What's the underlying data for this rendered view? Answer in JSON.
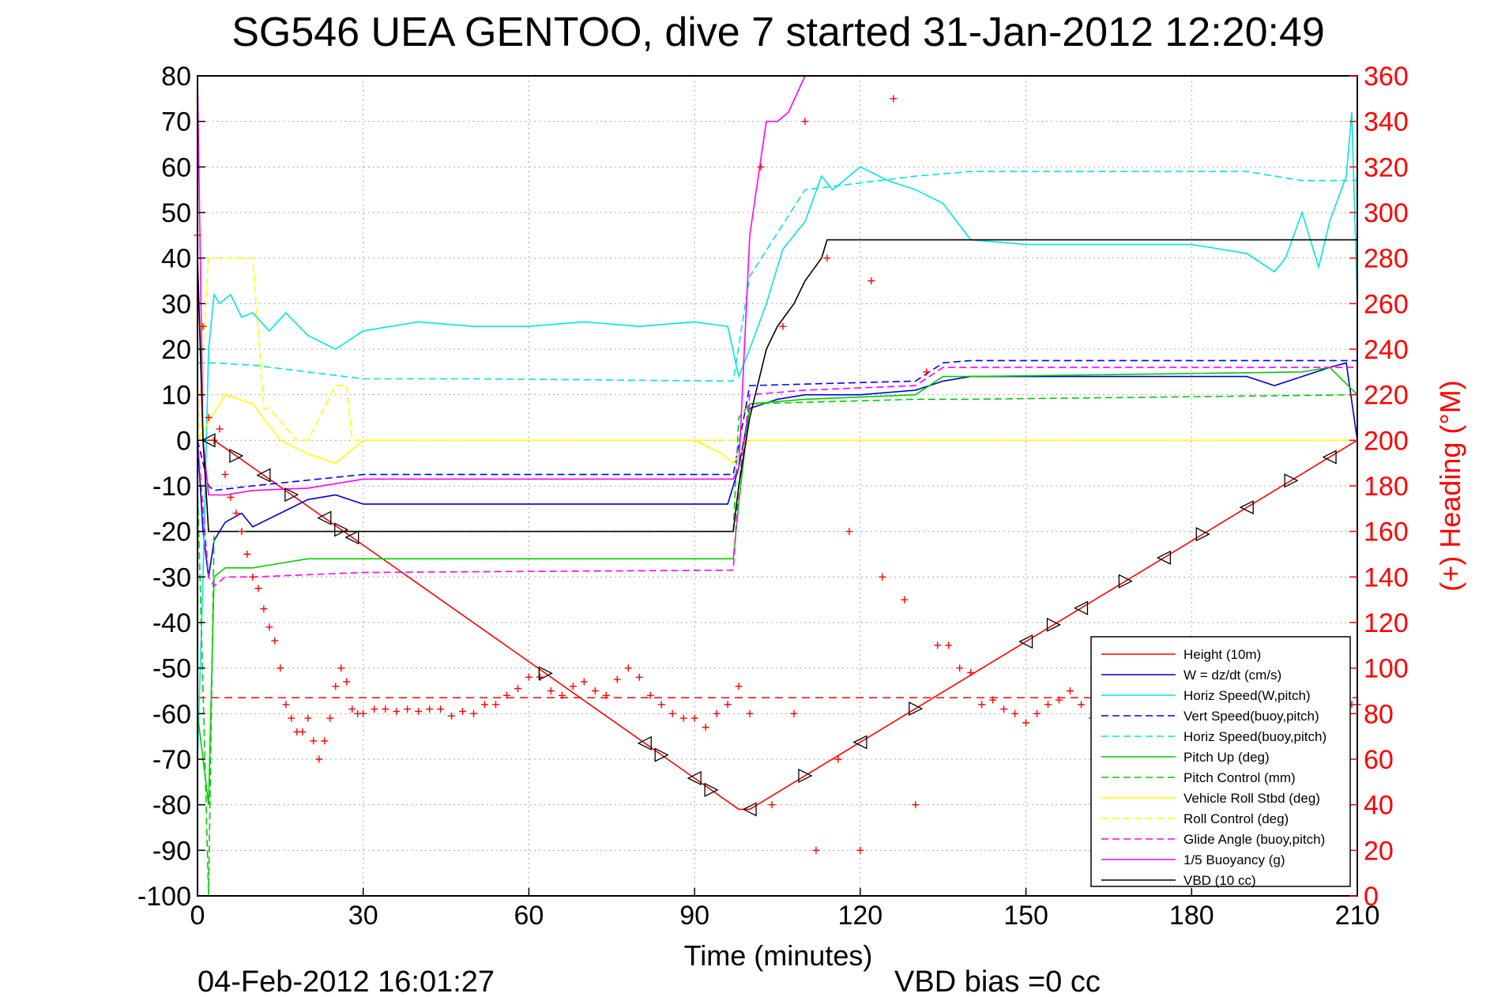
{
  "chart_data": {
    "type": "line",
    "title": "SG546 UEA GENTOO, dive 7 started 31-Jan-2012 12:20:49",
    "xlabel": "Time (minutes)",
    "ylabel_right": "(+) Heading (°M)",
    "xlim": [
      0,
      210
    ],
    "ylim": [
      -100,
      80
    ],
    "ylim_right": [
      0,
      360
    ],
    "xticks": [
      0,
      30,
      60,
      90,
      120,
      150,
      180,
      210
    ],
    "yticks": [
      80,
      70,
      60,
      50,
      40,
      30,
      20,
      10,
      0,
      -10,
      -20,
      -30,
      -40,
      -50,
      -60,
      -70,
      -80,
      -90,
      -100
    ],
    "yticks_right": [
      360,
      340,
      320,
      300,
      280,
      260,
      240,
      220,
      200,
      180,
      160,
      140,
      120,
      100,
      80,
      60,
      40,
      20,
      0
    ],
    "grid": true,
    "legend_position": "bottom-right",
    "footer_left": "04-Feb-2012 16:01:27",
    "footer_right": "VBD bias =0 cc",
    "reference_line_y": -56.5,
    "series": [
      {
        "name": "Height (10m)",
        "color": "#ff0000",
        "style": "solid",
        "x": [
          0,
          2,
          3,
          98,
          100,
          210
        ],
        "y": [
          0,
          0,
          0,
          -81,
          -81,
          0
        ]
      },
      {
        "name": "W = dz/dt (cm/s)",
        "color": "#0000cc",
        "style": "solid",
        "x": [
          0,
          1,
          2,
          3,
          5,
          8,
          10,
          15,
          20,
          25,
          30,
          50,
          70,
          90,
          96,
          98,
          100,
          105,
          110,
          120,
          130,
          135,
          140,
          150,
          160,
          170,
          180,
          190,
          195,
          200,
          205,
          208,
          210
        ],
        "y": [
          0,
          -20,
          -30,
          -22,
          -18,
          -16,
          -19,
          -16,
          -13,
          -12,
          -14,
          -14,
          -14,
          -14,
          -14,
          -6,
          7,
          9,
          10,
          10,
          11,
          13,
          14,
          14,
          14,
          14,
          14,
          14,
          12,
          14,
          16,
          17,
          0
        ]
      },
      {
        "name": "Horiz Speed(W,pitch)",
        "color": "#00e5e5",
        "style": "solid",
        "x": [
          0,
          1,
          2,
          3,
          4,
          6,
          8,
          10,
          13,
          16,
          20,
          25,
          30,
          40,
          50,
          60,
          70,
          80,
          90,
          96,
          98,
          100,
          103,
          106,
          110,
          113,
          115,
          120,
          125,
          130,
          135,
          140,
          150,
          160,
          170,
          180,
          190,
          195,
          197,
          200,
          203,
          205,
          208,
          209,
          210
        ],
        "y": [
          -70,
          -30,
          20,
          32,
          30,
          32,
          27,
          28,
          24,
          28,
          23,
          20,
          24,
          26,
          25,
          25,
          26,
          25,
          26,
          25,
          14,
          20,
          30,
          42,
          48,
          58,
          55,
          60,
          57,
          55,
          52,
          44,
          43,
          43,
          43,
          43,
          41,
          37,
          40,
          50,
          38,
          48,
          58,
          72,
          30
        ]
      },
      {
        "name": "Vert Speed(buoy,pitch)",
        "color": "#0000ff",
        "style": "dashed",
        "x": [
          0,
          2,
          3,
          10,
          30,
          97,
          100,
          130,
          135,
          140,
          205,
          210
        ],
        "y": [
          0,
          -10,
          -11,
          -10,
          -7.5,
          -7.5,
          12,
          13,
          17,
          17.5,
          17.5,
          17.5
        ]
      },
      {
        "name": "Horiz Speed(buoy,pitch)",
        "color": "#00e5e5",
        "style": "dashed",
        "x": [
          0,
          3,
          10,
          20,
          30,
          50,
          97,
          100,
          110,
          130,
          135,
          140,
          180,
          190,
          200,
          205,
          210
        ],
        "y": [
          17,
          17,
          16.5,
          15,
          13.5,
          13.5,
          13,
          36,
          55,
          58,
          58.5,
          59,
          59,
          59,
          57,
          57,
          57
        ]
      },
      {
        "name": "Pitch Up (deg)",
        "color": "#00cc00",
        "style": "solid",
        "x": [
          0,
          2,
          3,
          5,
          10,
          15,
          20,
          30,
          97,
          98,
          100,
          110,
          130,
          135,
          140,
          200,
          205,
          210
        ],
        "y": [
          -60,
          -80,
          -30,
          -28,
          -28,
          -27,
          -26,
          -26,
          -26,
          -14,
          8,
          9,
          10,
          14,
          14,
          15,
          16,
          10
        ]
      },
      {
        "name": "Pitch Control (mm)",
        "color": "#00cc00",
        "style": "dashed",
        "x": [
          0,
          2,
          3,
          5,
          97,
          98,
          100,
          130,
          140,
          210
        ],
        "y": [
          -10,
          -100,
          -20,
          -20,
          -20,
          5,
          8,
          9,
          9,
          10
        ]
      },
      {
        "name": "Vehicle Roll Stbd (deg)",
        "color": "#ffff00",
        "style": "solid",
        "x": [
          0,
          5,
          10,
          15,
          20,
          25,
          30,
          50,
          80,
          90,
          95,
          97,
          100,
          120,
          135,
          140,
          180,
          210
        ],
        "y": [
          0,
          10,
          8,
          0,
          -3,
          -5,
          0,
          0,
          0,
          0,
          -3,
          -5,
          0,
          0,
          0,
          0,
          0,
          0
        ]
      },
      {
        "name": "Roll Control (deg)",
        "color": "#ffff00",
        "style": "dashed",
        "x": [
          0,
          2,
          3,
          5,
          10,
          12,
          13,
          18,
          20,
          25,
          27,
          28,
          30,
          95,
          97,
          100,
          135,
          140,
          210
        ],
        "y": [
          0,
          40,
          40,
          40,
          40,
          7,
          7,
          0,
          0,
          12,
          12,
          0,
          0,
          0,
          0,
          0,
          0,
          0,
          0
        ]
      },
      {
        "name": "Glide Angle (buoy,pitch)",
        "color": "#ff00ff",
        "style": "dashed",
        "x": [
          0,
          2,
          3,
          5,
          10,
          20,
          30,
          97,
          98,
          100,
          110,
          130,
          135,
          140,
          200,
          210
        ],
        "y": [
          0,
          -30,
          -32,
          -30,
          -30,
          -29.5,
          -29,
          -28.5,
          -10,
          10,
          11,
          12,
          16,
          16,
          16,
          16
        ]
      },
      {
        "name": "1/5 Buoyancy (g)",
        "color": "#ff00ff",
        "style": "solid",
        "x": [
          0,
          1,
          2,
          3,
          5,
          10,
          20,
          30,
          97,
          98,
          100,
          103,
          105,
          107,
          110
        ],
        "y": [
          80,
          0,
          -12,
          -12,
          -12,
          -11,
          -10.5,
          -8.5,
          -8.5,
          -6,
          45,
          70,
          70,
          72,
          80
        ]
      },
      {
        "name": "VBD (10 cc)",
        "color": "#000000",
        "style": "solid",
        "x": [
          0,
          1,
          2,
          3,
          97,
          98,
          100,
          103,
          105,
          108,
          110,
          113,
          114,
          130,
          210
        ],
        "y": [
          40,
          0,
          -20,
          -20,
          -20,
          -10,
          5,
          20,
          25,
          30,
          35,
          40,
          44,
          44,
          44
        ]
      }
    ],
    "heading_series": {
      "name": "(+) Heading (°M)",
      "color": "#ff0000",
      "marker": "+",
      "x": [
        0,
        1,
        2,
        3,
        4,
        5,
        6,
        7,
        8,
        9,
        10,
        11,
        12,
        13,
        14,
        15,
        16,
        17,
        18,
        19,
        20,
        21,
        22,
        23,
        24,
        25,
        26,
        27,
        28,
        29,
        30,
        32,
        34,
        36,
        38,
        40,
        42,
        44,
        46,
        48,
        50,
        52,
        54,
        56,
        58,
        60,
        62,
        64,
        66,
        68,
        70,
        72,
        74,
        76,
        78,
        80,
        82,
        84,
        86,
        88,
        90,
        92,
        94,
        96,
        98,
        100,
        102,
        104,
        106,
        108,
        110,
        112,
        114,
        116,
        118,
        120,
        122,
        124,
        126,
        128,
        130,
        132,
        134,
        136,
        138,
        140,
        142,
        144,
        146,
        148,
        150,
        152,
        154,
        156,
        158,
        160,
        162,
        208,
        209,
        210
      ],
      "y": [
        290,
        250,
        210,
        200,
        205,
        185,
        175,
        168,
        160,
        150,
        140,
        135,
        126,
        118,
        112,
        100,
        84,
        78,
        72,
        72,
        78,
        68,
        60,
        68,
        78,
        92,
        100,
        94,
        82,
        80,
        80,
        82,
        82,
        81,
        82,
        81,
        82,
        82,
        79,
        81,
        80,
        84,
        84,
        88,
        91,
        96,
        96,
        90,
        88,
        92,
        94,
        90,
        88,
        95,
        100,
        96,
        88,
        84,
        80,
        78,
        78,
        74,
        80,
        84,
        92,
        80,
        320,
        40,
        250,
        80,
        340,
        20,
        280,
        60,
        160,
        20,
        270,
        140,
        350,
        130,
        40,
        230,
        110,
        110,
        100,
        98,
        84,
        86,
        82,
        80,
        76,
        80,
        84,
        86,
        90,
        84,
        78,
        84,
        84,
        84
      ]
    }
  }
}
